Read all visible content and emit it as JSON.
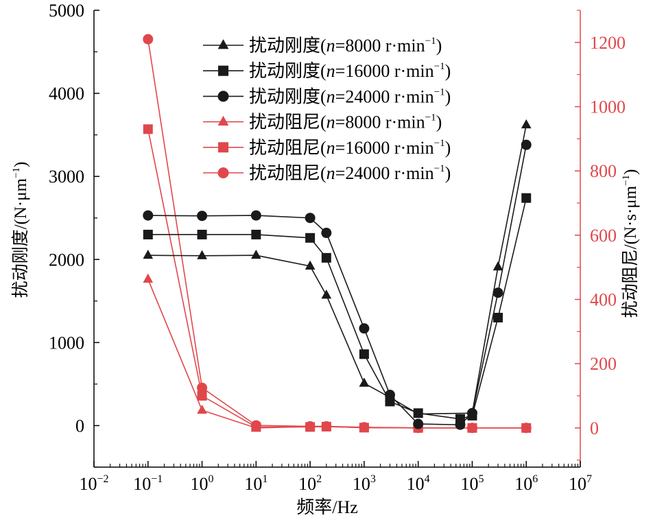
{
  "chart_data": {
    "type": "line",
    "title": "",
    "xlabel": "频率/Hz",
    "x_scale": "log",
    "xlim_exp": [
      -2,
      7
    ],
    "x_ticks": [
      {
        "base": "10",
        "exp": "−2"
      },
      {
        "base": "10",
        "exp": "−1"
      },
      {
        "base": "10",
        "exp": "0"
      },
      {
        "base": "10",
        "exp": "1"
      },
      {
        "base": "10",
        "exp": "2"
      },
      {
        "base": "10",
        "exp": "3"
      },
      {
        "base": "10",
        "exp": "4"
      },
      {
        "base": "10",
        "exp": "5"
      },
      {
        "base": "10",
        "exp": "6"
      },
      {
        "base": "10",
        "exp": "7"
      }
    ],
    "y_left": {
      "label_prefix": "扰动刚度/(N·μm",
      "label_sup": "−1",
      "label_suffix": ")",
      "ylim": [
        -500,
        5000
      ],
      "ticks": [
        "0",
        "1000",
        "2000",
        "3000",
        "4000",
        "5000"
      ],
      "color": "#000000"
    },
    "y_right": {
      "label_prefix": "扰动阻尼/(N·s·μm",
      "label_sup": "−1",
      "label_suffix": ")",
      "ylim": [
        -122,
        1300
      ],
      "ticks": [
        "0",
        "200",
        "400",
        "600",
        "800",
        "1000",
        "1200"
      ],
      "color": "#e0474c"
    },
    "series": [
      {
        "name_prefix": "扰动刚度(",
        "name_italic": "n",
        "name_rest": "=8000 r·min",
        "name_sup": "−1",
        "name_end": ")",
        "axis": "left",
        "marker": "triangle",
        "color": "#1a1a1a",
        "x": [
          0.1,
          1,
          10,
          100,
          200,
          1000,
          3000,
          10000,
          100000,
          300000,
          1000000
        ],
        "values": [
          2050,
          2045,
          2050,
          1920,
          1570,
          510,
          340,
          140,
          150,
          1910,
          3620
        ]
      },
      {
        "name_prefix": "扰动刚度(",
        "name_italic": "n",
        "name_rest": "=16000 r·min",
        "name_sup": "−1",
        "name_end": ")",
        "axis": "left",
        "marker": "square",
        "color": "#1a1a1a",
        "x": [
          0.1,
          1,
          10,
          100,
          200,
          1000,
          3000,
          10000,
          60000,
          100000,
          300000,
          1000000
        ],
        "values": [
          2300,
          2300,
          2300,
          2260,
          2020,
          860,
          290,
          150,
          80,
          120,
          1300,
          2740
        ]
      },
      {
        "name_prefix": "扰动刚度(",
        "name_italic": "n",
        "name_rest": "=24000 r·min",
        "name_sup": "−1",
        "name_end": ")",
        "axis": "left",
        "marker": "circle",
        "color": "#1a1a1a",
        "x": [
          0.1,
          1,
          10,
          100,
          200,
          1000,
          3000,
          10000,
          60000,
          100000,
          300000,
          1000000
        ],
        "values": [
          2530,
          2525,
          2530,
          2500,
          2320,
          1170,
          370,
          20,
          10,
          150,
          1600,
          3380
        ]
      },
      {
        "name_prefix": "扰动阻尼(",
        "name_italic": "n",
        "name_rest": "=8000 r·min",
        "name_sup": "−1",
        "name_end": ")",
        "axis": "right",
        "marker": "triangle",
        "color": "#e0474c",
        "x": [
          0.1,
          1,
          10,
          100,
          200,
          1000,
          10000,
          100000,
          1000000
        ],
        "values": [
          463,
          55,
          0,
          4,
          4,
          1,
          0,
          0,
          0
        ]
      },
      {
        "name_prefix": "扰动阻尼(",
        "name_italic": "n",
        "name_rest": "=16000 r·min",
        "name_sup": "−1",
        "name_end": ")",
        "axis": "right",
        "marker": "square",
        "color": "#e0474c",
        "x": [
          0.1,
          1,
          10,
          100,
          200,
          1000,
          10000,
          100000,
          1000000
        ],
        "values": [
          930,
          100,
          3,
          3,
          4,
          1,
          0,
          0,
          0
        ]
      },
      {
        "name_prefix": "扰动阻尼(",
        "name_italic": "n",
        "name_rest": "=24000 r·min",
        "name_sup": "−1",
        "name_end": ")",
        "axis": "right",
        "marker": "circle",
        "color": "#e0474c",
        "x": [
          0.1,
          1,
          10,
          100,
          200,
          1000,
          10000,
          100000,
          1000000
        ],
        "values": [
          1210,
          125,
          8,
          5,
          5,
          2,
          0,
          0,
          0
        ]
      }
    ],
    "legend_position": "top-right",
    "grid": false
  }
}
